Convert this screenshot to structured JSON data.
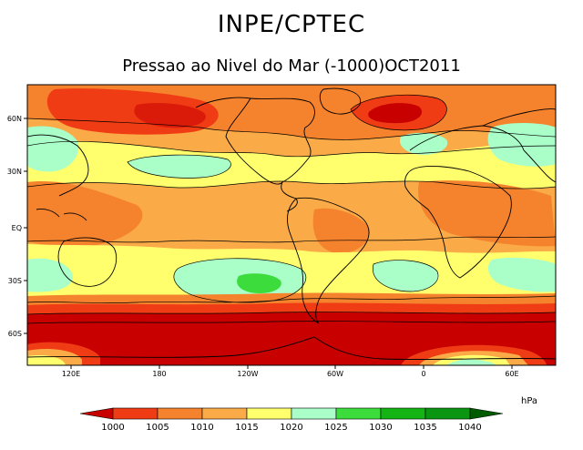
{
  "title": "INPE/CPTEC",
  "subtitle": "Pressao ao Nivel do Mar (-1000)OCT2011",
  "map": {
    "x_ticks": [
      "120E",
      "180",
      "120W",
      "60W",
      "0",
      "60E"
    ],
    "y_ticks": [
      "60N",
      "30N",
      "EQ",
      "30S",
      "60S"
    ]
  },
  "colorbar": {
    "unit": "hPa",
    "levels": [
      "1000",
      "1005",
      "1010",
      "1015",
      "1020",
      "1025",
      "1030",
      "1035",
      "1040"
    ],
    "colors": [
      "#c80000",
      "#f03c14",
      "#f5822d",
      "#faaa46",
      "#ffff6e",
      "#aaffc8",
      "#3cdc3c",
      "#14b414",
      "#0a9610",
      "#005a00"
    ]
  }
}
